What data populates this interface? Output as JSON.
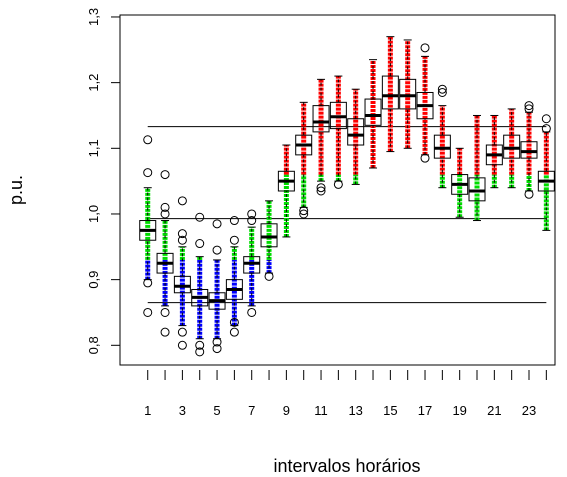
{
  "chart_data": {
    "type": "boxplot",
    "y_label": "p.u.",
    "x_label": "intervalos horários",
    "categories": [
      "1",
      null,
      "3",
      null,
      "5",
      null,
      "7",
      null,
      "9",
      null,
      "11",
      null,
      "13",
      null,
      "15",
      null,
      "17",
      null,
      "19",
      null,
      "21",
      null,
      "23",
      null
    ],
    "xlim": [
      -0.6,
      24.5
    ],
    "ylim": [
      0.77,
      1.303
    ],
    "yticks": [
      {
        "value": 0.8,
        "label": "0,8"
      },
      {
        "value": 0.9,
        "label": "0,9"
      },
      {
        "value": 1.0,
        "label": "1,0"
      },
      {
        "value": 1.1,
        "label": "1,1"
      },
      {
        "value": 1.2,
        "label": "1,2"
      },
      {
        "value": 1.3,
        "label": "1,3"
      }
    ],
    "hlines": [
      1.133,
      0.993,
      0.865
    ],
    "color_breaks": [
      0.93,
      1.06
    ],
    "point_colors": [
      "#0000ff",
      "#00dd00",
      "#ff0000"
    ],
    "boxes": [
      {
        "median": 0.975,
        "q1": 0.96,
        "q3": 0.99,
        "low": 0.9,
        "high": 1.04,
        "outliers": [
          0.85,
          0.895,
          1.063,
          1.113
        ]
      },
      {
        "median": 0.925,
        "q1": 0.91,
        "q3": 0.94,
        "low": 0.86,
        "high": 0.99,
        "outliers": [
          0.82,
          0.85,
          1.0,
          1.01,
          1.06
        ]
      },
      {
        "median": 0.89,
        "q1": 0.88,
        "q3": 0.905,
        "low": 0.83,
        "high": 0.95,
        "outliers": [
          0.8,
          0.82,
          0.96,
          0.97,
          1.02
        ]
      },
      {
        "median": 0.873,
        "q1": 0.86,
        "q3": 0.885,
        "low": 0.81,
        "high": 0.935,
        "outliers": [
          0.79,
          0.8,
          0.955,
          0.995
        ]
      },
      {
        "median": 0.868,
        "q1": 0.855,
        "q3": 0.88,
        "low": 0.81,
        "high": 0.93,
        "outliers": [
          0.795,
          0.805,
          0.945,
          0.985
        ]
      },
      {
        "median": 0.885,
        "q1": 0.87,
        "q3": 0.9,
        "low": 0.83,
        "high": 0.95,
        "outliers": [
          0.82,
          0.835,
          0.96,
          0.99
        ]
      },
      {
        "median": 0.925,
        "q1": 0.91,
        "q3": 0.935,
        "low": 0.86,
        "high": 0.98,
        "outliers": [
          0.85,
          0.99,
          1.0
        ]
      },
      {
        "median": 0.965,
        "q1": 0.95,
        "q3": 0.985,
        "low": 0.91,
        "high": 1.02,
        "outliers": [
          0.905
        ]
      },
      {
        "median": 1.05,
        "q1": 1.035,
        "q3": 1.065,
        "low": 0.965,
        "high": 1.105,
        "outliers": []
      },
      {
        "median": 1.105,
        "q1": 1.09,
        "q3": 1.12,
        "low": 1.01,
        "high": 1.17,
        "outliers": [
          1.0,
          1.005
        ]
      },
      {
        "median": 1.14,
        "q1": 1.125,
        "q3": 1.165,
        "low": 1.05,
        "high": 1.205,
        "outliers": [
          1.035,
          1.04
        ]
      },
      {
        "median": 1.148,
        "q1": 1.13,
        "q3": 1.17,
        "low": 1.05,
        "high": 1.21,
        "outliers": [
          1.045
        ]
      },
      {
        "median": 1.12,
        "q1": 1.105,
        "q3": 1.145,
        "low": 1.045,
        "high": 1.19,
        "outliers": []
      },
      {
        "median": 1.15,
        "q1": 1.135,
        "q3": 1.175,
        "low": 1.07,
        "high": 1.235,
        "outliers": []
      },
      {
        "median": 1.18,
        "q1": 1.16,
        "q3": 1.21,
        "low": 1.095,
        "high": 1.27,
        "outliers": []
      },
      {
        "median": 1.18,
        "q1": 1.16,
        "q3": 1.205,
        "low": 1.1,
        "high": 1.265,
        "outliers": []
      },
      {
        "median": 1.165,
        "q1": 1.145,
        "q3": 1.185,
        "low": 1.09,
        "high": 1.24,
        "outliers": [
          1.085,
          1.253
        ]
      },
      {
        "median": 1.1,
        "q1": 1.085,
        "q3": 1.12,
        "low": 1.04,
        "high": 1.165,
        "outliers": [
          1.185,
          1.19
        ]
      },
      {
        "median": 1.045,
        "q1": 1.03,
        "q3": 1.06,
        "low": 0.995,
        "high": 1.1,
        "outliers": []
      },
      {
        "median": 1.035,
        "q1": 1.02,
        "q3": 1.055,
        "low": 0.99,
        "high": 1.15,
        "outliers": []
      },
      {
        "median": 1.09,
        "q1": 1.075,
        "q3": 1.105,
        "low": 1.04,
        "high": 1.15,
        "outliers": []
      },
      {
        "median": 1.1,
        "q1": 1.085,
        "q3": 1.12,
        "low": 1.04,
        "high": 1.16,
        "outliers": []
      },
      {
        "median": 1.095,
        "q1": 1.085,
        "q3": 1.11,
        "low": 1.035,
        "high": 1.155,
        "outliers": [
          1.03,
          1.16,
          1.165
        ]
      },
      {
        "median": 1.05,
        "q1": 1.035,
        "q3": 1.065,
        "low": 0.975,
        "high": 1.125,
        "outliers": [
          1.13,
          1.145
        ]
      }
    ]
  }
}
